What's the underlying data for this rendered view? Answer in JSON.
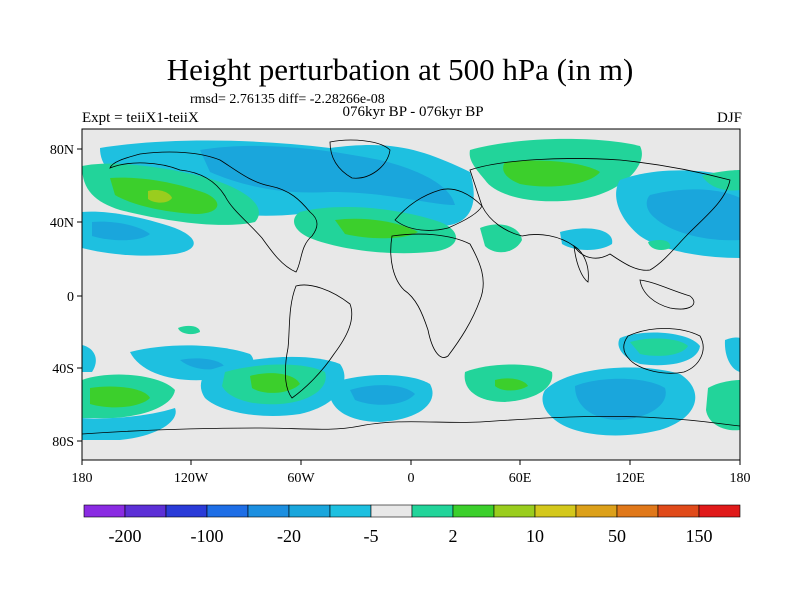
{
  "title": "Height perturbation at 500 hPa (in m)",
  "stats": "rmsd= 2.76135 diff= -2.28266e-08",
  "period": "076kyr BP - 076kyr BP",
  "expt": "Expt = teiiX1-teiiX",
  "season": "DJF",
  "map": {
    "projection": "cylindrical equidistant",
    "background_color": "#e8e8e8",
    "coastline_color": "#000000",
    "lat_ticks": [
      "80N",
      "40N",
      "0",
      "40S",
      "80S"
    ],
    "lon_ticks": [
      "180",
      "120W",
      "60W",
      "0",
      "60E",
      "120E",
      "180"
    ]
  },
  "colorbar": {
    "colors": [
      "#8a2be2",
      "#5c2fd6",
      "#2a3bd8",
      "#1e6ee6",
      "#1c8fe0",
      "#1aa6dc",
      "#1ec0e0",
      "#e8e8e8",
      "#22d49a",
      "#3ccf2c",
      "#9acd1e",
      "#d4c81c",
      "#dca01a",
      "#e0781a",
      "#e04a1a",
      "#e01a1a"
    ],
    "labels": [
      "-200",
      "-100",
      "-20",
      "-5",
      "2",
      "10",
      "50",
      "150"
    ]
  }
}
